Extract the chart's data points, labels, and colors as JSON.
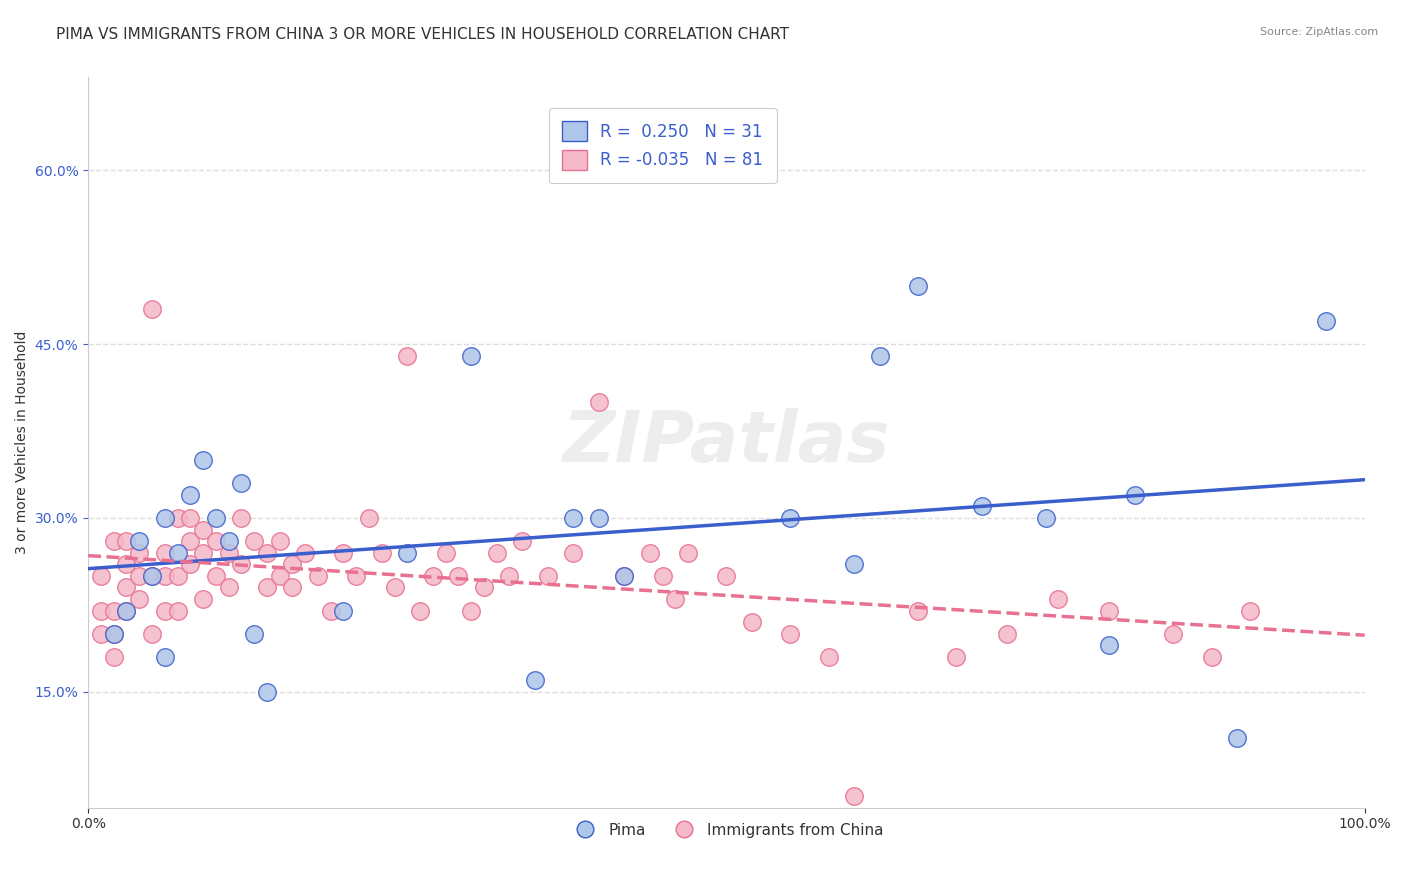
{
  "title": "PIMA VS IMMIGRANTS FROM CHINA 3 OR MORE VEHICLES IN HOUSEHOLD CORRELATION CHART",
  "source": "Source: ZipAtlas.com",
  "ylabel": "3 or more Vehicles in Household",
  "ytick_labels": [
    "15.0%",
    "30.0%",
    "45.0%",
    "60.0%"
  ],
  "ytick_values": [
    0.15,
    0.3,
    0.45,
    0.6
  ],
  "xtick_labels": [
    "0.0%",
    "100.0%"
  ],
  "xtick_values": [
    0.0,
    1.0
  ],
  "xlim": [
    0.0,
    1.0
  ],
  "ylim": [
    0.05,
    0.68
  ],
  "legend_labels": [
    "Pima",
    "Immigrants from China"
  ],
  "R_pima": 0.25,
  "N_pima": 31,
  "R_china": -0.035,
  "N_china": 81,
  "color_pima": "#aec6e8",
  "color_china": "#f4b8c8",
  "color_pima_line": "#3a5fcd",
  "color_china_line": "#e87090",
  "background_color": "#ffffff",
  "grid_color": "#dddddd",
  "watermark": "ZIPatlas",
  "title_fontsize": 11,
  "label_fontsize": 10,
  "legend_fontsize": 12,
  "pima_x": [
    0.02,
    0.03,
    0.04,
    0.05,
    0.06,
    0.06,
    0.07,
    0.08,
    0.09,
    0.1,
    0.11,
    0.12,
    0.13,
    0.14,
    0.2,
    0.25,
    0.3,
    0.35,
    0.38,
    0.4,
    0.42,
    0.55,
    0.6,
    0.62,
    0.65,
    0.7,
    0.75,
    0.8,
    0.82,
    0.9,
    0.97
  ],
  "pima_y": [
    0.2,
    0.22,
    0.28,
    0.25,
    0.18,
    0.3,
    0.27,
    0.32,
    0.35,
    0.3,
    0.28,
    0.33,
    0.2,
    0.15,
    0.22,
    0.27,
    0.44,
    0.16,
    0.3,
    0.3,
    0.25,
    0.3,
    0.26,
    0.44,
    0.5,
    0.31,
    0.3,
    0.19,
    0.32,
    0.11,
    0.47
  ],
  "china_x": [
    0.01,
    0.01,
    0.01,
    0.02,
    0.02,
    0.02,
    0.02,
    0.03,
    0.03,
    0.03,
    0.03,
    0.04,
    0.04,
    0.04,
    0.05,
    0.05,
    0.05,
    0.06,
    0.06,
    0.06,
    0.07,
    0.07,
    0.07,
    0.08,
    0.08,
    0.08,
    0.09,
    0.09,
    0.09,
    0.1,
    0.1,
    0.11,
    0.11,
    0.12,
    0.12,
    0.13,
    0.14,
    0.14,
    0.15,
    0.15,
    0.16,
    0.16,
    0.17,
    0.18,
    0.19,
    0.2,
    0.21,
    0.22,
    0.23,
    0.24,
    0.25,
    0.26,
    0.27,
    0.28,
    0.29,
    0.3,
    0.31,
    0.32,
    0.33,
    0.34,
    0.36,
    0.38,
    0.4,
    0.42,
    0.44,
    0.45,
    0.46,
    0.47,
    0.5,
    0.52,
    0.55,
    0.58,
    0.6,
    0.65,
    0.68,
    0.72,
    0.76,
    0.8,
    0.85,
    0.88,
    0.91
  ],
  "china_y": [
    0.2,
    0.22,
    0.25,
    0.18,
    0.2,
    0.22,
    0.28,
    0.24,
    0.26,
    0.28,
    0.22,
    0.25,
    0.23,
    0.27,
    0.48,
    0.2,
    0.25,
    0.22,
    0.27,
    0.25,
    0.3,
    0.25,
    0.22,
    0.28,
    0.3,
    0.26,
    0.27,
    0.23,
    0.29,
    0.25,
    0.28,
    0.24,
    0.27,
    0.3,
    0.26,
    0.28,
    0.27,
    0.24,
    0.25,
    0.28,
    0.26,
    0.24,
    0.27,
    0.25,
    0.22,
    0.27,
    0.25,
    0.3,
    0.27,
    0.24,
    0.44,
    0.22,
    0.25,
    0.27,
    0.25,
    0.22,
    0.24,
    0.27,
    0.25,
    0.28,
    0.25,
    0.27,
    0.4,
    0.25,
    0.27,
    0.25,
    0.23,
    0.27,
    0.25,
    0.21,
    0.2,
    0.18,
    0.06,
    0.22,
    0.18,
    0.2,
    0.23,
    0.22,
    0.2,
    0.18,
    0.22
  ]
}
